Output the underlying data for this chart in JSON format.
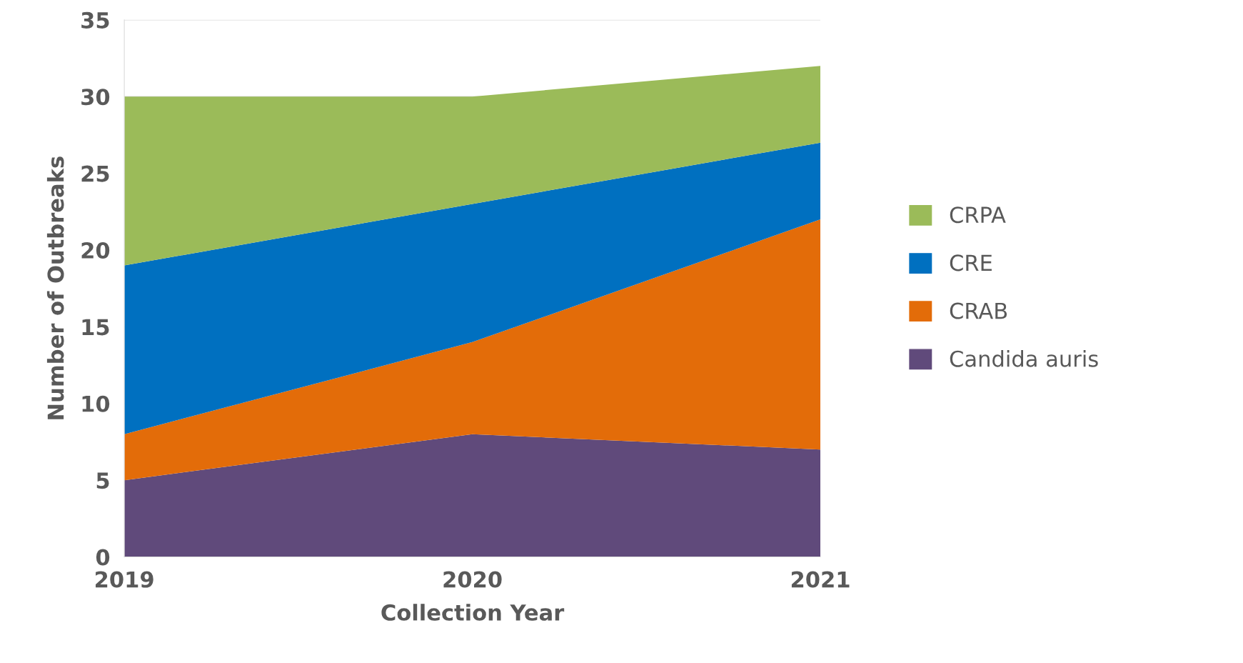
{
  "chart_data": {
    "type": "area",
    "stacked": true,
    "xlabel": "Collection Year",
    "ylabel": "Number of Outbreaks",
    "categories": [
      "2019",
      "2020",
      "2021"
    ],
    "series": [
      {
        "name": "Candida auris",
        "color": "#604a7b",
        "values": [
          5,
          8,
          7
        ]
      },
      {
        "name": "CRAB",
        "color": "#e36c09",
        "values": [
          3,
          6,
          15
        ]
      },
      {
        "name": "CRE",
        "color": "#0070c0",
        "values": [
          11,
          9,
          5
        ]
      },
      {
        "name": "CRPA",
        "color": "#9bbb59",
        "values": [
          11,
          7,
          5
        ]
      }
    ],
    "ylim": [
      0,
      35
    ],
    "yticks": [
      0,
      5,
      10,
      15,
      20,
      25,
      30,
      35
    ],
    "grid": "y",
    "legend": "right"
  }
}
